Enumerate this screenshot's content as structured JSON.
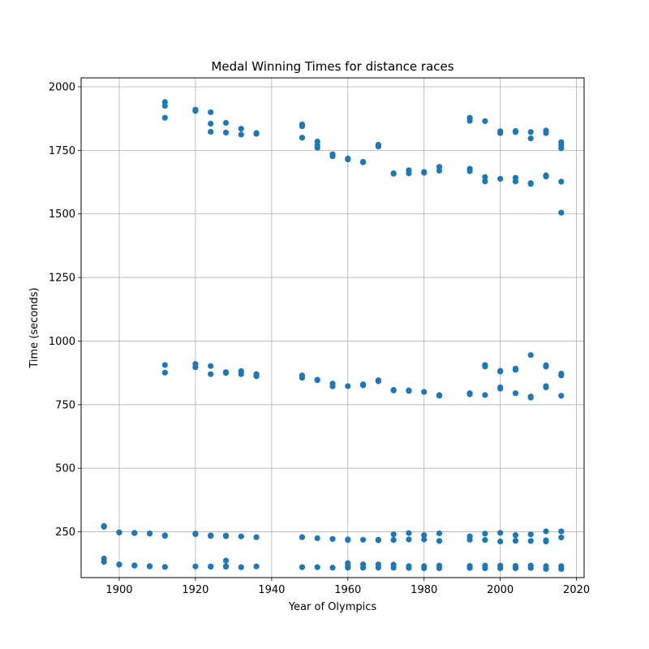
{
  "chart_data": {
    "type": "scatter",
    "title": "Medal Winning Times for distance races",
    "xlabel": "Year of Olympics",
    "ylabel": "Time (seconds)",
    "xlim": [
      1890,
      2022
    ],
    "ylim": [
      70,
      2035
    ],
    "xticks": [
      1900,
      1920,
      1940,
      1960,
      1980,
      2000,
      2020
    ],
    "yticks": [
      250,
      500,
      750,
      1000,
      1250,
      1500,
      1750,
      2000
    ],
    "grid": true,
    "legend": "none",
    "marker_color": "#1f77b4",
    "series": [
      {
        "points": [
          [
            1896,
            273
          ],
          [
            1896,
            270
          ],
          [
            1896,
            145
          ],
          [
            1896,
            132
          ],
          [
            1900,
            247
          ],
          [
            1900,
            248
          ],
          [
            1900,
            122
          ],
          [
            1900,
            121
          ],
          [
            1904,
            245
          ],
          [
            1904,
            246
          ],
          [
            1904,
            117
          ],
          [
            1904,
            118
          ],
          [
            1908,
            243
          ],
          [
            1908,
            244
          ],
          [
            1908,
            114
          ],
          [
            1908,
            115
          ],
          [
            1912,
            1940
          ],
          [
            1912,
            1925
          ],
          [
            1912,
            1878
          ],
          [
            1912,
            906
          ],
          [
            1912,
            876
          ],
          [
            1912,
            236
          ],
          [
            1912,
            234
          ],
          [
            1912,
            112
          ],
          [
            1920,
            1910
          ],
          [
            1920,
            1905
          ],
          [
            1920,
            910
          ],
          [
            1920,
            897
          ],
          [
            1920,
            241
          ],
          [
            1920,
            243
          ],
          [
            1920,
            114
          ],
          [
            1924,
            1900
          ],
          [
            1924,
            1855
          ],
          [
            1924,
            1823
          ],
          [
            1924,
            902
          ],
          [
            1924,
            870
          ],
          [
            1924,
            234
          ],
          [
            1924,
            236
          ],
          [
            1924,
            113
          ],
          [
            1924,
            114
          ],
          [
            1928,
            1858
          ],
          [
            1928,
            1820
          ],
          [
            1928,
            878
          ],
          [
            1928,
            875
          ],
          [
            1928,
            233
          ],
          [
            1928,
            235
          ],
          [
            1928,
            137
          ],
          [
            1928,
            115
          ],
          [
            1928,
            113
          ],
          [
            1932,
            1835
          ],
          [
            1932,
            1812
          ],
          [
            1932,
            882
          ],
          [
            1932,
            870
          ],
          [
            1932,
            232
          ],
          [
            1932,
            111
          ],
          [
            1936,
            1818
          ],
          [
            1936,
            1815
          ],
          [
            1936,
            870
          ],
          [
            1936,
            862
          ],
          [
            1936,
            229
          ],
          [
            1936,
            114
          ],
          [
            1948,
            1852
          ],
          [
            1948,
            1845
          ],
          [
            1948,
            1800
          ],
          [
            1948,
            865
          ],
          [
            1948,
            856
          ],
          [
            1948,
            229
          ],
          [
            1948,
            111
          ],
          [
            1952,
            1785
          ],
          [
            1952,
            1770
          ],
          [
            1952,
            1760
          ],
          [
            1952,
            848
          ],
          [
            1952,
            846
          ],
          [
            1952,
            225
          ],
          [
            1952,
            111
          ],
          [
            1956,
            1735
          ],
          [
            1956,
            1727
          ],
          [
            1956,
            833
          ],
          [
            1956,
            822
          ],
          [
            1956,
            222
          ],
          [
            1956,
            109
          ],
          [
            1960,
            1718
          ],
          [
            1960,
            1714
          ],
          [
            1960,
            823
          ],
          [
            1960,
            220
          ],
          [
            1960,
            218
          ],
          [
            1960,
            127
          ],
          [
            1960,
            115
          ],
          [
            1960,
            109
          ],
          [
            1964,
            1705
          ],
          [
            1964,
            1703
          ],
          [
            1964,
            830
          ],
          [
            1964,
            826
          ],
          [
            1964,
            219
          ],
          [
            1964,
            122
          ],
          [
            1964,
            109
          ],
          [
            1968,
            1772
          ],
          [
            1968,
            1765
          ],
          [
            1968,
            846
          ],
          [
            1968,
            842
          ],
          [
            1968,
            219
          ],
          [
            1968,
            217
          ],
          [
            1968,
            122
          ],
          [
            1968,
            109
          ],
          [
            1972,
            1660
          ],
          [
            1972,
            1658
          ],
          [
            1972,
            808
          ],
          [
            1972,
            806
          ],
          [
            1972,
            240
          ],
          [
            1972,
            218
          ],
          [
            1972,
            121
          ],
          [
            1972,
            109
          ],
          [
            1976,
            1672
          ],
          [
            1976,
            1660
          ],
          [
            1976,
            806
          ],
          [
            1976,
            804
          ],
          [
            1976,
            245
          ],
          [
            1976,
            220
          ],
          [
            1976,
            115
          ],
          [
            1976,
            108
          ],
          [
            1980,
            1665
          ],
          [
            1980,
            1662
          ],
          [
            1980,
            800
          ],
          [
            1980,
            237
          ],
          [
            1980,
            220
          ],
          [
            1980,
            115
          ],
          [
            1980,
            107
          ],
          [
            1984,
            1685
          ],
          [
            1984,
            1670
          ],
          [
            1984,
            788
          ],
          [
            1984,
            785
          ],
          [
            1984,
            244
          ],
          [
            1984,
            214
          ],
          [
            1984,
            117
          ],
          [
            1984,
            107
          ],
          [
            1992,
            1878
          ],
          [
            1992,
            1866
          ],
          [
            1992,
            1678
          ],
          [
            1992,
            1668
          ],
          [
            1992,
            795
          ],
          [
            1992,
            791
          ],
          [
            1992,
            232
          ],
          [
            1992,
            219
          ],
          [
            1992,
            116
          ],
          [
            1992,
            108
          ],
          [
            1996,
            1865
          ],
          [
            1996,
            1645
          ],
          [
            1996,
            1628
          ],
          [
            1996,
            906
          ],
          [
            1996,
            900
          ],
          [
            1996,
            788
          ],
          [
            1996,
            243
          ],
          [
            1996,
            218
          ],
          [
            1996,
            117
          ],
          [
            1996,
            107
          ],
          [
            2000,
            1825
          ],
          [
            2000,
            1818
          ],
          [
            2000,
            1638
          ],
          [
            2000,
            883
          ],
          [
            2000,
            880
          ],
          [
            2000,
            818
          ],
          [
            2000,
            813
          ],
          [
            2000,
            246
          ],
          [
            2000,
            212
          ],
          [
            2000,
            117
          ],
          [
            2000,
            107
          ],
          [
            2004,
            1826
          ],
          [
            2004,
            1822
          ],
          [
            2004,
            1642
          ],
          [
            2004,
            1628
          ],
          [
            2004,
            892
          ],
          [
            2004,
            887
          ],
          [
            2004,
            795
          ],
          [
            2004,
            237
          ],
          [
            2004,
            215
          ],
          [
            2004,
            116
          ],
          [
            2004,
            107
          ],
          [
            2008,
            1822
          ],
          [
            2008,
            1797
          ],
          [
            2008,
            1621
          ],
          [
            2008,
            1618
          ],
          [
            2008,
            945
          ],
          [
            2008,
            782
          ],
          [
            2008,
            778
          ],
          [
            2008,
            240
          ],
          [
            2008,
            214
          ],
          [
            2008,
            117
          ],
          [
            2008,
            108
          ],
          [
            2012,
            1828
          ],
          [
            2012,
            1818
          ],
          [
            2012,
            1652
          ],
          [
            2012,
            1647
          ],
          [
            2012,
            905
          ],
          [
            2012,
            900
          ],
          [
            2012,
            823
          ],
          [
            2012,
            818
          ],
          [
            2012,
            252
          ],
          [
            2012,
            217
          ],
          [
            2012,
            212
          ],
          [
            2012,
            115
          ],
          [
            2012,
            104
          ],
          [
            2016,
            1782
          ],
          [
            2016,
            1770
          ],
          [
            2016,
            1758
          ],
          [
            2016,
            1627
          ],
          [
            2016,
            1505
          ],
          [
            2016,
            872
          ],
          [
            2016,
            865
          ],
          [
            2016,
            785
          ],
          [
            2016,
            252
          ],
          [
            2016,
            228
          ],
          [
            2016,
            115
          ],
          [
            2016,
            104
          ]
        ]
      }
    ]
  }
}
